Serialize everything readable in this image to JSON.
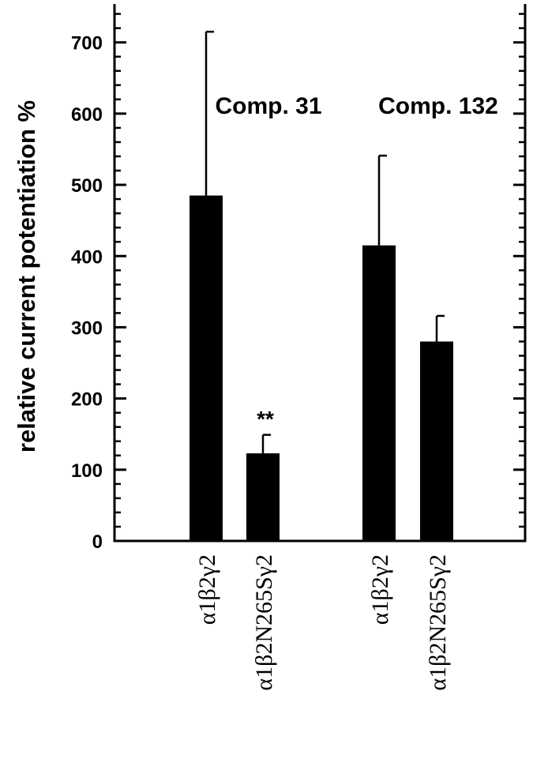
{
  "chart_data": {
    "type": "bar",
    "y_label": "relative current potentiation %",
    "categories": [
      "α1β2γ2",
      "α1β2N265Sγ2",
      "α1β2γ2",
      "α1β2N265Sγ2"
    ],
    "values": [
      485,
      123,
      415,
      280
    ],
    "errors": [
      230,
      26,
      126,
      36
    ],
    "color": "#000000",
    "annotations": [
      "Comp. 31",
      "Comp. 132",
      "**"
    ],
    "ylim": [
      0,
      754
    ],
    "yticks": [
      0,
      100,
      200,
      300,
      400,
      500,
      600,
      700
    ],
    "yminorticks": [
      20,
      40,
      60,
      80,
      120,
      140,
      160,
      180,
      220,
      240,
      260,
      280,
      320,
      340,
      360,
      380,
      420,
      440,
      460,
      480,
      520,
      540,
      560,
      580,
      620,
      640,
      660,
      680,
      720,
      740
    ]
  }
}
